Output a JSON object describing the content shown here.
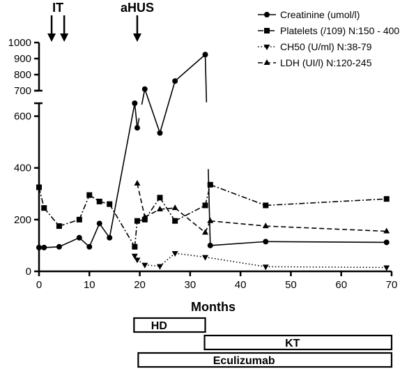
{
  "chart_data": {
    "type": "line",
    "xlabel": "Months",
    "ylabel": "",
    "xlim": [
      0,
      70
    ],
    "xticks": [
      0,
      10,
      20,
      30,
      40,
      50,
      60,
      70
    ],
    "yticks_lower": [
      0,
      200,
      400,
      600
    ],
    "yticks_upper": [
      700,
      800,
      900,
      1000
    ],
    "ylim_lower": [
      0,
      650
    ],
    "ylim_upper": [
      700,
      1000
    ],
    "axis_break": [
      650,
      700
    ],
    "annotations": [
      {
        "label": "IT",
        "x": [
          2.5,
          5
        ]
      },
      {
        "label": "aHUS",
        "x": [
          19.5
        ]
      }
    ],
    "series": [
      {
        "name": "Creatinine (umol/l)",
        "marker": "circle",
        "linestyle": "solid",
        "x": [
          0,
          1,
          4,
          8,
          10,
          12,
          14,
          19,
          19.5,
          21,
          24,
          27,
          33,
          34,
          45,
          69
        ],
        "y": [
          92,
          92,
          95,
          130,
          95,
          185,
          130,
          680,
          555,
          710,
          535,
          760,
          925,
          100,
          115,
          112
        ],
        "gaps_after_index": [
          8,
          12
        ]
      },
      {
        "name": "Platelets (/109) N:150 - 400",
        "marker": "square",
        "linestyle": "dashdot",
        "x": [
          0,
          1,
          4,
          8,
          10,
          12,
          14,
          19,
          19.5,
          21,
          24,
          27,
          33,
          34,
          45,
          69
        ],
        "y": [
          325,
          245,
          175,
          200,
          295,
          270,
          260,
          95,
          195,
          200,
          285,
          195,
          255,
          335,
          255,
          280
        ]
      },
      {
        "name": "CH50 (U/ml) N:38-79",
        "marker": "triangle-down",
        "linestyle": "dotted",
        "x": [
          19,
          19.5,
          21,
          24,
          27,
          33,
          45,
          69
        ],
        "y": [
          60,
          45,
          25,
          20,
          70,
          55,
          18,
          15
        ]
      },
      {
        "name": "LDH (UI/l) N:120-245",
        "marker": "triangle-up",
        "linestyle": "dashed",
        "x": [
          19.5,
          21,
          24,
          27,
          33,
          34,
          45,
          69
        ],
        "y": [
          340,
          210,
          240,
          245,
          150,
          195,
          175,
          155
        ]
      }
    ],
    "treatment_bars": [
      {
        "label": "HD",
        "start": 19,
        "end": 33
      },
      {
        "label": "KT",
        "start": 33,
        "end": 70
      },
      {
        "label": "Eculizumab",
        "start": 19,
        "end": 70
      }
    ]
  }
}
